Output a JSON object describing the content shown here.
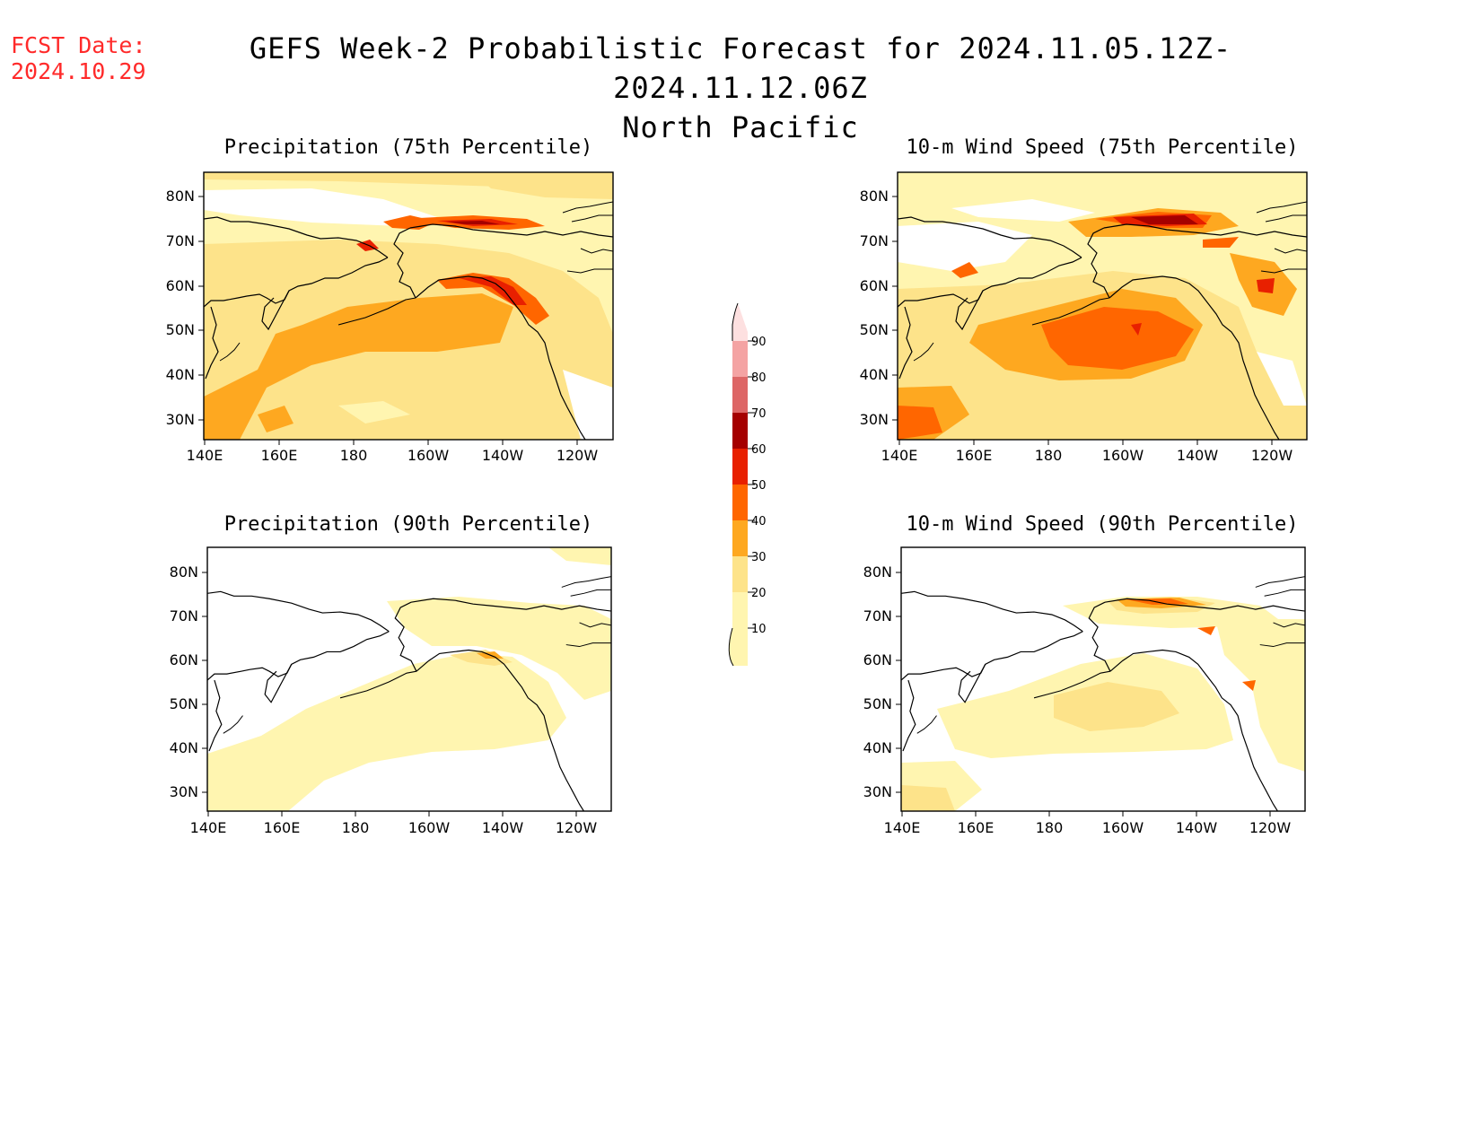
{
  "header": {
    "fcst_label": "FCST Date:",
    "fcst_date": "2024.10.29",
    "title_line1": "GEFS Week-2 Probabilistic Forecast for 2024.11.05.12Z-2024.11.12.06Z",
    "title_line2": "North Pacific"
  },
  "axes": {
    "lat_labels": [
      "80N",
      "70N",
      "60N",
      "50N",
      "40N",
      "30N"
    ],
    "lon_labels": [
      "140E",
      "160E",
      "180",
      "160W",
      "140W",
      "120W"
    ]
  },
  "panels": [
    {
      "title": "Precipitation (75th Percentile)"
    },
    {
      "title": "10-m Wind Speed (75th Percentile)"
    },
    {
      "title": "Precipitation (90th Percentile)"
    },
    {
      "title": "10-m Wind Speed (90th Percentile)"
    }
  ],
  "colorbar": {
    "levels": [
      "10",
      "20",
      "30",
      "40",
      "50",
      "60",
      "70",
      "80",
      "90"
    ],
    "colors": [
      "#fff5b0",
      "#fde38a",
      "#fea820",
      "#ff6600",
      "#e82000",
      "#a50000",
      "#dd6666",
      "#f4a3a3",
      "#fde0e0"
    ]
  }
}
